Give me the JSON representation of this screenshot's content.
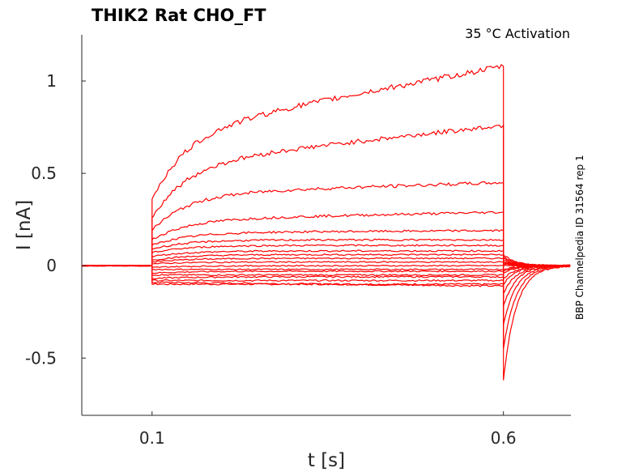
{
  "chart_data": {
    "type": "line",
    "title": "THIK2  Rat  CHO_FT",
    "annotation": "35 °C  Activation",
    "side_label": "BBP Channelpedia ID 31564 rep 1",
    "xlabel": "t [s]",
    "ylabel": "I [nA]",
    "xlim": [
      0.0,
      0.696
    ],
    "ylim": [
      -0.81,
      1.25
    ],
    "x_ticks": [
      0.1,
      0.6
    ],
    "x_tick_labels": [
      "0.1",
      "0.6"
    ],
    "y_ticks": [
      -0.5,
      0,
      0.5,
      1
    ],
    "y_tick_labels": [
      "-0.5",
      "0",
      "0.5",
      "1"
    ],
    "grid": false,
    "legend": "none",
    "color": "#ff0000",
    "step_on": 0.1,
    "step_off": 0.6,
    "series": [
      {
        "onset": -0.1,
        "steady": -0.1,
        "end": -0.1,
        "tail_peak": -0.62
      },
      {
        "onset": -0.09,
        "steady": -0.09,
        "end": -0.11,
        "tail_peak": -0.45
      },
      {
        "onset": -0.08,
        "steady": -0.08,
        "end": -0.08,
        "tail_peak": -0.32
      },
      {
        "onset": -0.07,
        "steady": -0.06,
        "end": -0.06,
        "tail_peak": -0.22
      },
      {
        "onset": -0.05,
        "steady": -0.05,
        "end": -0.05,
        "tail_peak": -0.15
      },
      {
        "onset": -0.04,
        "steady": -0.03,
        "end": -0.03,
        "tail_peak": -0.1
      },
      {
        "onset": -0.02,
        "steady": -0.02,
        "end": -0.02,
        "tail_peak": -0.07
      },
      {
        "onset": -0.01,
        "steady": 0.0,
        "end": 0.0,
        "tail_peak": -0.04
      },
      {
        "onset": 0.01,
        "steady": 0.02,
        "end": 0.02,
        "tail_peak": -0.03
      },
      {
        "onset": 0.02,
        "steady": 0.04,
        "end": 0.04,
        "tail_peak": -0.02
      },
      {
        "onset": 0.03,
        "steady": 0.06,
        "end": 0.06,
        "tail_peak": 0.0
      },
      {
        "onset": 0.05,
        "steady": 0.08,
        "end": 0.08,
        "tail_peak": 0.01
      },
      {
        "onset": 0.07,
        "steady": 0.11,
        "end": 0.11,
        "tail_peak": 0.01
      },
      {
        "onset": 0.09,
        "steady": 0.14,
        "end": 0.14,
        "tail_peak": 0.02
      },
      {
        "onset": 0.11,
        "steady": 0.18,
        "end": 0.19,
        "tail_peak": 0.02
      },
      {
        "onset": 0.14,
        "steady": 0.25,
        "end": 0.29,
        "tail_peak": 0.03
      },
      {
        "onset": 0.19,
        "steady": 0.39,
        "end": 0.45,
        "tail_peak": 0.04
      },
      {
        "onset": 0.26,
        "steady": 0.55,
        "end": 0.76,
        "tail_peak": 0.05
      },
      {
        "onset": 0.36,
        "steady": 0.72,
        "end": 1.08,
        "tail_peak": 0.06
      }
    ]
  }
}
